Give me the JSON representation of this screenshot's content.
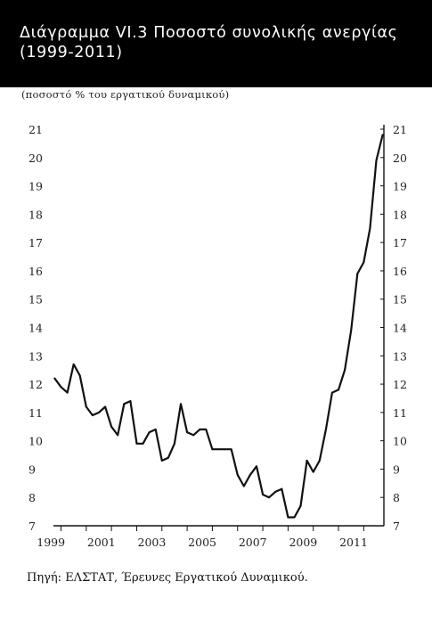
{
  "chart_data": {
    "type": "line",
    "title": "Διάγραμμα VI.3  Ποσοστό συνολικής ανεργίας (1999-2011)",
    "subtitle": "(ποσοστό % του εργατικού δυναμικού)",
    "source": "Πηγή: ΕΛΣΤΑΤ, Έρευνες Εργατικού Δυναμικού.",
    "xlabel": "",
    "ylabel": "",
    "ylim": [
      7,
      21
    ],
    "xlim": [
      1998.7,
      2011.8
    ],
    "y_ticks": [
      "7",
      "8",
      "9",
      "10",
      "11",
      "12",
      "13",
      "14",
      "15",
      "16",
      "17",
      "18",
      "19",
      "20",
      "21"
    ],
    "x_tick_labels": [
      "1999",
      "2001",
      "2003",
      "2005",
      "2007",
      "2009",
      "2011"
    ],
    "grid": false,
    "series": [
      {
        "x": [
          1998.75,
          1999.0,
          1999.25,
          1999.5,
          1999.75,
          2000.0,
          2000.25,
          2000.5,
          2000.75,
          2001.0,
          2001.25,
          2001.5,
          2001.75,
          2002.0,
          2002.25,
          2002.5,
          2002.75,
          2003.0,
          2003.25,
          2003.5,
          2003.75,
          2004.0,
          2004.25,
          2004.5,
          2004.75,
          2005.0,
          2005.25,
          2005.5,
          2005.75,
          2006.0,
          2006.25,
          2006.5,
          2006.75,
          2007.0,
          2007.25,
          2007.5,
          2007.75,
          2008.0,
          2008.25,
          2008.5,
          2008.75,
          2009.0,
          2009.25,
          2009.5,
          2009.75,
          2010.0,
          2010.25,
          2010.5,
          2010.75,
          2011.0,
          2011.25,
          2011.5,
          2011.75
        ],
        "values": [
          12.2,
          11.9,
          11.7,
          12.7,
          12.3,
          11.2,
          10.9,
          11.0,
          11.2,
          10.5,
          10.2,
          11.3,
          11.4,
          9.9,
          9.9,
          10.3,
          10.4,
          9.3,
          9.4,
          9.9,
          11.3,
          10.3,
          10.2,
          10.4,
          10.4,
          9.7,
          9.7,
          9.7,
          9.7,
          8.8,
          8.4,
          8.8,
          9.1,
          8.1,
          8.0,
          8.2,
          8.3,
          7.3,
          7.3,
          7.7,
          9.3,
          8.9,
          9.3,
          10.4,
          11.7,
          11.8,
          12.5,
          13.9,
          15.9,
          16.3,
          17.5,
          19.9,
          20.8
        ]
      }
    ]
  }
}
